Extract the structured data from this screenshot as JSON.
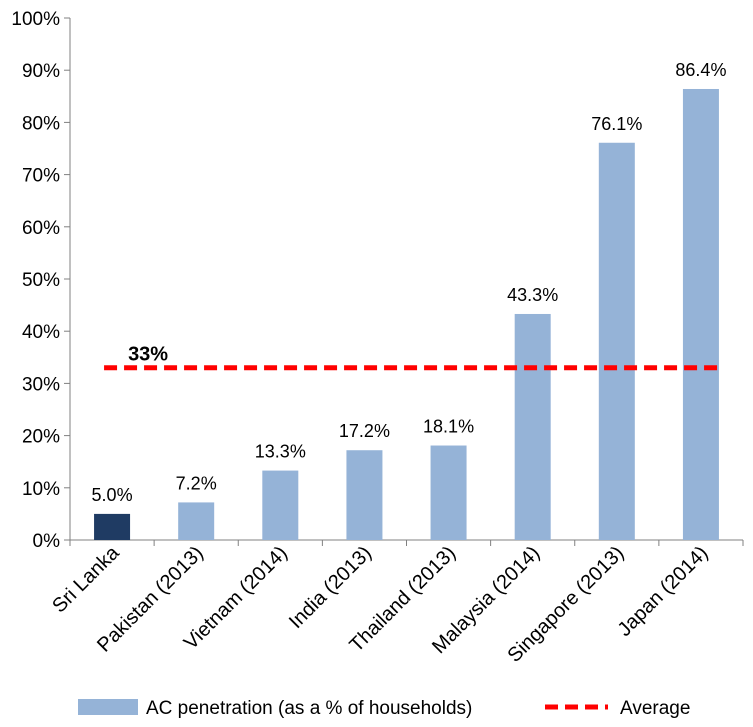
{
  "chart_data": {
    "type": "bar",
    "categories": [
      "Sri Lanka",
      "Pakistan (2013)",
      "Vietnam (2014)",
      "India (2013)",
      "Thailand (2013)",
      "Malaysia (2014)",
      "Singapore (2013)",
      "Japan (2014)"
    ],
    "series": [
      {
        "name": "AC penetration (as a % of households)",
        "values": [
          5.0,
          7.2,
          13.3,
          17.2,
          18.1,
          43.3,
          76.1,
          86.4
        ],
        "data_labels": [
          "5.0%",
          "7.2%",
          "13.3%",
          "17.2%",
          "18.1%",
          "43.3%",
          "76.1%",
          "86.4%"
        ]
      }
    ],
    "average": {
      "name": "Average",
      "value": 33,
      "label": "33%"
    },
    "ylim": [
      0,
      100
    ],
    "yticks": [
      "0%",
      "10%",
      "20%",
      "30%",
      "40%",
      "50%",
      "60%",
      "70%",
      "80%",
      "90%",
      "100%"
    ],
    "grid": false,
    "legend_position": "bottom",
    "colors": {
      "bar": "#95b3d7",
      "highlight_bar": "#1f3b63",
      "average_line": "#ff0000",
      "axis": "#808080"
    }
  }
}
